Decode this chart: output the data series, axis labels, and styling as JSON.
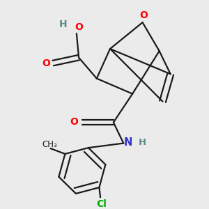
{
  "background_color": "#ebebeb",
  "atom_colors": {
    "O": "#ff0000",
    "N": "#3333cc",
    "Cl": "#00aa00",
    "C": "#1a1a1a",
    "H": "#5f8a8a"
  },
  "bond_color": "#1a1a1a",
  "bond_width": 1.6,
  "figsize": [
    3.0,
    3.0
  ],
  "dpi": 100
}
